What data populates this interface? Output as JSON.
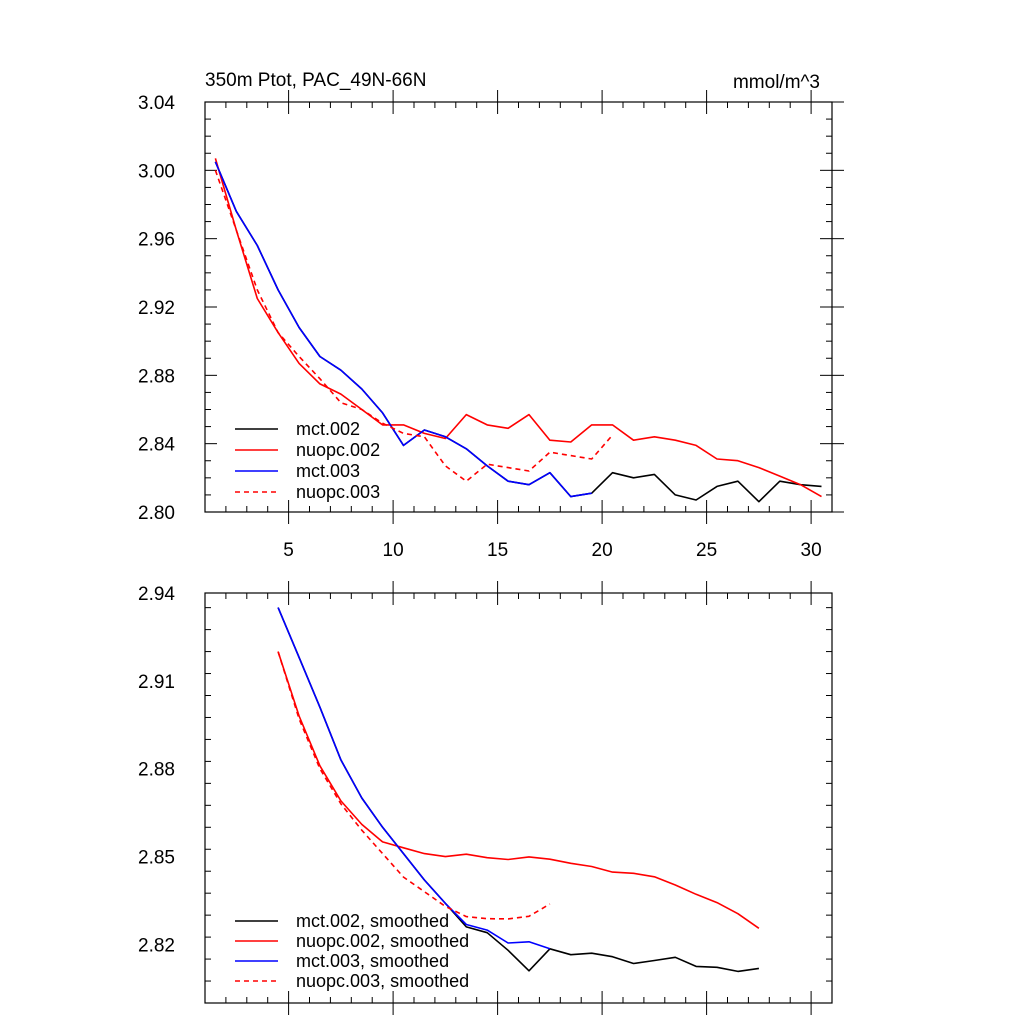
{
  "chart_data": [
    {
      "type": "line",
      "title": "350m Ptot, PAC_49N-66N",
      "units": "mmol/m^3",
      "xlim": [
        1,
        31
      ],
      "ylim": [
        2.8,
        3.04
      ],
      "xticks": [
        5,
        10,
        15,
        20,
        25,
        30
      ],
      "yticks": [
        2.8,
        2.84,
        2.88,
        2.92,
        2.96,
        3.0,
        3.04
      ],
      "ytick_labels": [
        "2.80",
        "2.84",
        "2.88",
        "2.92",
        "2.96",
        "3.00",
        "3.04"
      ],
      "xtick_labels": [
        "5",
        "10",
        "15",
        "20",
        "25",
        "30"
      ],
      "legend_position": "bottom-left",
      "series": [
        {
          "name": "mct.002",
          "color": "#000000",
          "dash": "solid",
          "x": [
            1.5,
            2.5,
            3.5,
            4.5,
            5.5,
            6.5,
            7.5,
            8.5,
            9.5,
            10.5,
            11.5,
            12.5,
            13.5,
            14.5,
            15.5,
            16.5,
            17.5,
            18.5,
            19.5,
            20.5,
            21.5,
            22.5,
            23.5,
            24.5,
            25.5,
            26.5,
            27.5,
            28.5,
            29.5,
            30.5
          ],
          "y": [
            3.005,
            2.976,
            2.956,
            2.93,
            2.908,
            2.891,
            2.883,
            2.872,
            2.858,
            2.839,
            2.848,
            2.844,
            2.837,
            2.827,
            2.818,
            2.816,
            2.823,
            2.809,
            2.811,
            2.823,
            2.82,
            2.822,
            2.81,
            2.807,
            2.815,
            2.818,
            2.806,
            2.818,
            2.816,
            2.815
          ]
        },
        {
          "name": "nuopc.002",
          "color": "#ff0000",
          "dash": "solid",
          "x": [
            1.5,
            2.5,
            3.5,
            4.5,
            5.5,
            6.5,
            7.5,
            8.5,
            9.5,
            10.5,
            11.5,
            12.5,
            13.5,
            14.5,
            15.5,
            16.5,
            17.5,
            18.5,
            19.5,
            20.5,
            21.5,
            22.5,
            23.5,
            24.5,
            25.5,
            26.5,
            27.5,
            28.5,
            29.5,
            30.5
          ],
          "y": [
            3.007,
            2.965,
            2.925,
            2.905,
            2.887,
            2.875,
            2.869,
            2.86,
            2.851,
            2.851,
            2.846,
            2.843,
            2.857,
            2.851,
            2.849,
            2.857,
            2.842,
            2.841,
            2.851,
            2.851,
            2.842,
            2.844,
            2.842,
            2.839,
            2.831,
            2.83,
            2.826,
            2.821,
            2.816,
            2.809
          ]
        },
        {
          "name": "mct.003",
          "color": "#0000ff",
          "dash": "solid",
          "x": [
            1.5,
            2.5,
            3.5,
            4.5,
            5.5,
            6.5,
            7.5,
            8.5,
            9.5,
            10.5,
            11.5,
            12.5,
            13.5,
            14.5,
            15.5,
            16.5,
            17.5,
            18.5,
            19.5
          ],
          "y": [
            3.005,
            2.976,
            2.956,
            2.93,
            2.908,
            2.891,
            2.883,
            2.872,
            2.858,
            2.839,
            2.848,
            2.844,
            2.837,
            2.827,
            2.818,
            2.816,
            2.823,
            2.809,
            2.811
          ]
        },
        {
          "name": "nuopc.003",
          "color": "#ff0000",
          "dash": "dashed",
          "x": [
            1.5,
            2.5,
            3.5,
            4.5,
            5.5,
            6.5,
            7.5,
            8.5,
            9.5,
            10.5,
            11.5,
            12.5,
            13.5,
            14.5,
            15.5,
            16.5,
            17.5,
            18.5,
            19.5,
            20.5
          ],
          "y": [
            3.0,
            2.965,
            2.93,
            2.905,
            2.891,
            2.878,
            2.864,
            2.86,
            2.852,
            2.846,
            2.844,
            2.827,
            2.818,
            2.828,
            2.826,
            2.824,
            2.835,
            2.833,
            2.831,
            2.845
          ]
        }
      ]
    },
    {
      "type": "line",
      "xlim": [
        1,
        31
      ],
      "ylim": [
        2.8,
        2.94
      ],
      "xticks": [
        5,
        10,
        15,
        20,
        25,
        30
      ],
      "yticks": [
        2.82,
        2.85,
        2.88,
        2.91,
        2.94
      ],
      "ytick_labels": [
        "2.82",
        "2.85",
        "2.88",
        "2.91",
        "2.94"
      ],
      "legend_position": "bottom-left",
      "series": [
        {
          "name": "mct.002, smoothed",
          "color": "#000000",
          "dash": "solid",
          "x": [
            4.5,
            5.5,
            6.5,
            7.5,
            8.5,
            9.5,
            10.5,
            11.5,
            12.5,
            13.5,
            14.5,
            15.5,
            16.5,
            17.5,
            18.5,
            19.5,
            20.5,
            21.5,
            22.5,
            23.5,
            24.5,
            25.5,
            26.5,
            27.5
          ],
          "y": [
            2.935,
            2.918,
            2.901,
            2.883,
            2.87,
            2.86,
            2.851,
            2.842,
            2.834,
            2.826,
            2.824,
            2.818,
            2.811,
            2.8185,
            2.8165,
            2.817,
            2.8158,
            2.8135,
            2.8145,
            2.8156,
            2.8125,
            2.8122,
            2.8108,
            2.8118
          ]
        },
        {
          "name": "nuopc.002, smoothed",
          "color": "#ff0000",
          "dash": "solid",
          "x": [
            4.5,
            5.5,
            6.5,
            7.5,
            8.5,
            9.5,
            10.5,
            11.5,
            12.5,
            13.5,
            14.5,
            15.5,
            16.5,
            17.5,
            18.5,
            19.5,
            20.5,
            21.5,
            22.5,
            23.5,
            24.5,
            25.5,
            26.5,
            27.5
          ],
          "y": [
            2.92,
            2.898,
            2.881,
            2.869,
            2.861,
            2.855,
            2.853,
            2.851,
            2.85,
            2.8508,
            2.8496,
            2.849,
            2.8499,
            2.8491,
            2.8477,
            2.8466,
            2.8447,
            2.8443,
            2.8431,
            2.8403,
            2.8371,
            2.8343,
            2.8305,
            2.8255
          ]
        },
        {
          "name": "mct.003, smoothed",
          "color": "#0000ff",
          "dash": "solid",
          "x": [
            4.5,
            5.5,
            6.5,
            7.5,
            8.5,
            9.5,
            10.5,
            11.5,
            12.5,
            13.5,
            14.5,
            15.5,
            16.5,
            17.5
          ],
          "y": [
            2.935,
            2.918,
            2.901,
            2.883,
            2.87,
            2.86,
            2.851,
            2.842,
            2.834,
            2.8268,
            2.8249,
            2.8205,
            2.8209,
            2.8185
          ]
        },
        {
          "name": "nuopc.003, smoothed",
          "color": "#ff0000",
          "dash": "dashed",
          "x": [
            4.5,
            5.5,
            6.5,
            7.5,
            8.5,
            9.5,
            10.5,
            11.5,
            12.5,
            13.5,
            14.5,
            15.5,
            16.5,
            17.5
          ],
          "y": [
            2.92,
            2.897,
            2.88,
            2.868,
            2.859,
            2.851,
            2.843,
            2.838,
            2.833,
            2.8295,
            2.8288,
            2.8287,
            2.8296,
            2.8338
          ]
        }
      ]
    }
  ]
}
